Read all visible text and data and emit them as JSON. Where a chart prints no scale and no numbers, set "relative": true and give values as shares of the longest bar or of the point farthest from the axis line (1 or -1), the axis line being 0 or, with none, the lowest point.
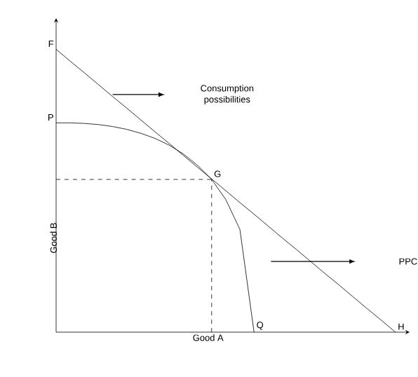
{
  "chart_data": {
    "type": "line",
    "relative": true,
    "xlabel": "Good A",
    "ylabel": "Good B",
    "marker": "none",
    "line_style": "solid",
    "categories": [
      null,
      null,
      null,
      null,
      null,
      null,
      null,
      null,
      null,
      null,
      null,
      null,
      null,
      null,
      null,
      null,
      null,
      null,
      null,
      null,
      null,
      null,
      null,
      null,
      null
    ],
    "series": [
      {
        "color": "#000000",
        "values": [
          1,
          0.958,
          0.917,
          0.875,
          0.833,
          0.792,
          0.75,
          0.708,
          0.667,
          0.625,
          0.583,
          0.542,
          0.5,
          0.458,
          0.417,
          0.375,
          0.333,
          0.292,
          0.25,
          0.208,
          0.167,
          0.125,
          0.083,
          0.042,
          0
        ]
      },
      {
        "color": "#000000",
        "values": [
          0.74,
          0.74,
          0.738,
          0.734,
          0.727,
          0.717,
          0.703,
          0.685,
          0.661,
          0.63,
          0.59,
          0.54,
          0.469,
          0.363,
          0,
          null,
          null,
          null,
          null,
          null,
          null,
          null,
          null,
          null,
          null
        ]
      }
    ],
    "ref_lines": [
      {
        "axis": "y",
        "value": 0.54,
        "line_style": "dashed"
      }
    ],
    "annotations": [
      "Consumption possibilities",
      "PPC",
      "F",
      "P",
      "G",
      "Q",
      "H"
    ]
  }
}
